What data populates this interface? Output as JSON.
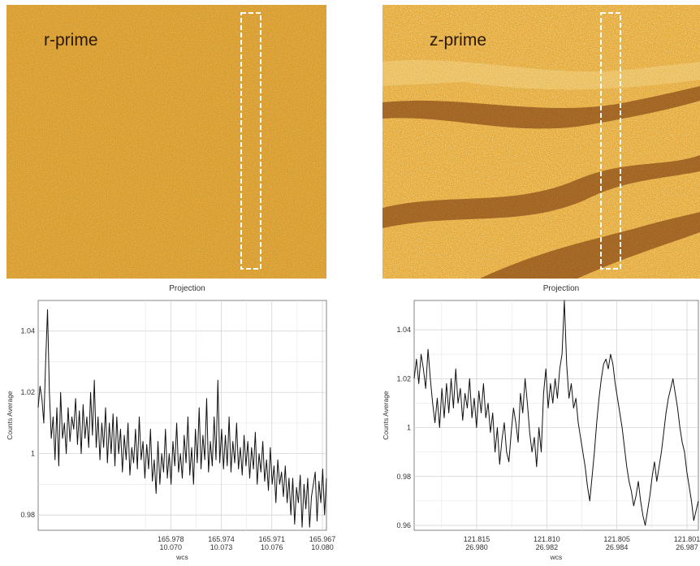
{
  "images": [
    {
      "label": "r-prime",
      "palette": "low-contrast"
    },
    {
      "label": "z-prime",
      "palette": "high-contrast"
    }
  ],
  "colors": {
    "heat_dark": "#6e2a05",
    "heat_mid": "#d9931e",
    "heat_light": "#f7e2a0",
    "line": "#111111",
    "grid": "#cfcfcf",
    "selection_box": "#ffffff"
  },
  "chart_data": [
    {
      "type": "line",
      "title": "Projection",
      "ylabel": "Counts Average",
      "xlabel": "wcs",
      "ylim": [
        0.975,
        1.05
      ],
      "y_ticks": [
        "1.04",
        "1.02",
        "1",
        "0.98"
      ],
      "x_ticks": [
        {
          "top": "165.978",
          "bottom": "10.070"
        },
        {
          "top": "165.974",
          "bottom": "10.073"
        },
        {
          "top": "165.971",
          "bottom": "10.076"
        },
        {
          "top": "165.967",
          "bottom": "10.080"
        }
      ],
      "grid": true,
      "series": [
        {
          "values": [
            1.015,
            1.022,
            1.018,
            1.01,
            1.03,
            1.047,
            1.02,
            1.005,
            1.012,
            0.998,
            1.015,
            0.996,
            1.02,
            1.005,
            1.01,
            1.0,
            1.015,
            1.004,
            1.012,
            1.008,
            1.018,
            1.003,
            1.014,
            1.0,
            1.016,
            1.005,
            1.012,
            1.002,
            1.02,
            1.006,
            1.024,
            1.002,
            1.012,
            0.998,
            1.01,
            1.002,
            1.015,
            0.997,
            1.01,
            1.0,
            1.013,
            0.996,
            1.012,
            1.0,
            1.008,
            0.994,
            1.006,
            0.998,
            1.01,
            0.993,
            1.002,
            0.997,
            1.008,
            0.995,
            1.012,
            0.998,
            1.004,
            0.992,
            1.003,
            0.995,
            1.008,
            0.991,
            0.998,
            0.987,
            1.004,
            0.99,
            1.0,
            0.994,
            1.008,
            0.992,
            1.0,
            0.99,
            1.004,
            0.996,
            1.01,
            0.994,
            1.0,
            0.992,
            1.006,
            0.997,
            1.012,
            0.993,
            1.002,
            0.99,
            1.008,
            0.997,
            1.015,
            0.995,
            1.006,
            0.998,
            1.018,
            0.994,
            1.004,
            0.996,
            1.012,
            0.998,
            1.024,
            0.997,
            1.008,
            0.995,
            1.006,
            0.996,
            1.012,
            0.994,
            1.004,
            0.997,
            1.01,
            0.995,
            1.002,
            0.993,
            1.006,
            0.996,
            1.004,
            0.992,
            1.002,
            0.995,
            1.007,
            0.99,
            1.0,
            0.994,
            1.004,
            0.991,
            0.998,
            0.988,
            1.002,
            0.99,
            0.996,
            0.984,
            0.998,
            0.99,
            0.994,
            0.986,
            0.996,
            0.984,
            0.992,
            0.98,
            0.992,
            0.977,
            0.989,
            0.984,
            0.993,
            0.976,
            0.99,
            0.982,
            0.992,
            0.976,
            0.986,
            0.99,
            0.994,
            0.978,
            0.991,
            0.984,
            0.995,
            0.98,
            0.992
          ]
        }
      ]
    },
    {
      "type": "line",
      "title": "Projection",
      "ylabel": "Counts Average",
      "xlabel": "wcs",
      "ylim": [
        0.958,
        1.052
      ],
      "y_ticks": [
        "1.04",
        "1.02",
        "1",
        "0.98",
        "0.96"
      ],
      "x_ticks": [
        {
          "top": "121.815",
          "bottom": "26.980"
        },
        {
          "top": "121.810",
          "bottom": "26.982"
        },
        {
          "top": "121.805",
          "bottom": "26.984"
        },
        {
          "top": "121.801",
          "bottom": "26.987"
        }
      ],
      "grid": true,
      "series": [
        {
          "values": [
            1.02,
            1.028,
            1.018,
            1.03,
            1.024,
            1.016,
            1.032,
            1.02,
            1.01,
            1.002,
            1.012,
            1.0,
            1.016,
            1.004,
            1.018,
            1.006,
            1.02,
            1.008,
            1.024,
            1.01,
            1.016,
            1.003,
            1.014,
            1.008,
            1.02,
            1.004,
            1.012,
            1.0,
            1.015,
            1.006,
            1.018,
            1.004,
            1.01,
            0.998,
            1.006,
            0.99,
            1.0,
            0.985,
            0.995,
            1.002,
            0.99,
            0.986,
            0.998,
            1.008,
            1.002,
            0.994,
            1.014,
            1.006,
            1.02,
            1.01,
            0.998,
            0.99,
            0.996,
            0.984,
            1.0,
            0.99,
            1.014,
            1.024,
            1.008,
            1.018,
            1.01,
            1.02,
            1.012,
            1.024,
            1.03,
            1.052,
            1.026,
            1.012,
            1.018,
            1.008,
            1.012,
            1.002,
            0.996,
            0.99,
            0.984,
            0.976,
            0.97,
            0.98,
            0.99,
            1.002,
            1.012,
            1.02,
            1.026,
            1.028,
            1.024,
            1.03,
            1.026,
            1.018,
            1.012,
            1.006,
            1.0,
            0.992,
            0.984,
            0.978,
            0.974,
            0.968,
            0.972,
            0.978,
            0.97,
            0.964,
            0.96,
            0.966,
            0.972,
            0.98,
            0.986,
            0.978,
            0.984,
            0.99,
            0.998,
            1.006,
            1.012,
            1.016,
            1.02,
            1.014,
            1.008,
            1.0,
            0.994,
            0.99,
            0.982,
            0.976,
            0.97,
            0.962,
            0.966,
            0.97
          ]
        }
      ]
    }
  ]
}
